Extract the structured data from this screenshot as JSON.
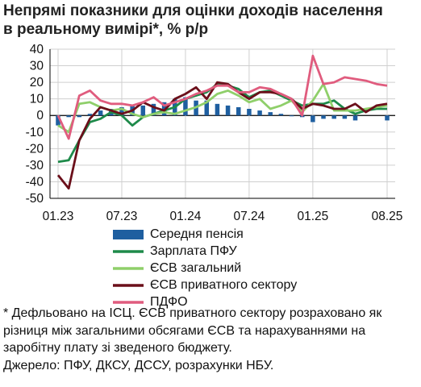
{
  "title": "Непрямі показники для оцінки доходів населення\nв реальному вимірі*, % р/р",
  "colors": {
    "pension": "#1f5fa0",
    "pfu": "#1e8a4a",
    "esv_total": "#8fcf6a",
    "esv_private": "#6b0f1a",
    "pdfo": "#e05c7e"
  },
  "chart_data": {
    "type": "line",
    "title": "Непрямі показники для оцінки доходів населення в реальному вимірі*, % р/р",
    "ylim": [
      -50,
      40
    ],
    "yticks": [
      "40",
      "30",
      "20",
      "10",
      "0",
      "-10",
      "-20",
      "-30",
      "-40",
      "-50"
    ],
    "xticks": [
      "01.23",
      "07.23",
      "01.24",
      "07.24",
      "01.25",
      "08.25"
    ],
    "x": [
      "01.23",
      "02.23",
      "03.23",
      "04.23",
      "05.23",
      "06.23",
      "07.23",
      "08.23",
      "09.23",
      "10.23",
      "11.23",
      "12.23",
      "01.24",
      "02.24",
      "03.24",
      "04.24",
      "05.24",
      "06.24",
      "07.24",
      "08.24",
      "09.24",
      "10.24",
      "11.24",
      "12.24",
      "01.25",
      "02.25",
      "03.25",
      "04.25",
      "05.25",
      "06.25",
      "07.25",
      "08.25"
    ],
    "grid": true,
    "legend": "bottom",
    "series": [
      {
        "name": "Середня пенсія",
        "style": "bar",
        "color": "#1f5fa0",
        "values": [
          -6,
          -1,
          -1,
          1,
          3,
          4,
          5,
          6,
          6,
          7,
          8,
          10,
          11,
          9,
          9,
          7,
          6,
          5,
          4,
          3,
          2,
          1,
          0,
          -1,
          -4,
          -2,
          -2,
          -2,
          -3,
          null,
          null,
          -3
        ]
      },
      {
        "name": "Зарплата ПФУ",
        "style": "line",
        "color": "#1e8a4a",
        "values": [
          -28,
          -27,
          -15,
          -4,
          -2,
          2,
          0,
          -6,
          -1,
          1,
          3,
          5,
          10,
          12,
          14,
          19,
          18,
          16,
          11,
          14,
          15,
          12,
          9,
          6,
          7,
          7,
          9,
          4,
          1,
          3,
          4,
          4
        ]
      },
      {
        "name": "ЄСВ загальний",
        "style": "line",
        "color": "#8fcf6a",
        "values": [
          -6,
          -10,
          7,
          8,
          5,
          3,
          4,
          1,
          -1,
          1,
          2,
          1,
          3,
          5,
          8,
          13,
          15,
          12,
          8,
          10,
          4,
          6,
          9,
          2,
          9,
          19,
          3,
          3,
          3,
          4,
          5,
          6
        ]
      },
      {
        "name": "ЄСВ приватного сектору",
        "style": "line",
        "color": "#6b0f1a",
        "values": [
          -36,
          -44,
          -15,
          -2,
          5,
          3,
          1,
          3,
          8,
          5,
          3,
          10,
          13,
          17,
          10,
          20,
          19,
          14,
          10,
          14,
          14,
          13,
          10,
          4,
          7,
          6,
          4,
          4,
          7,
          2,
          6,
          7
        ]
      },
      {
        "name": "ПДФО",
        "style": "line",
        "color": "#e05c7e",
        "values": [
          0,
          -14,
          12,
          15,
          9,
          7,
          7,
          6,
          8,
          11,
          6,
          8,
          10,
          13,
          15,
          18,
          18,
          14,
          14,
          17,
          16,
          13,
          10,
          0,
          36,
          19,
          20,
          23,
          22,
          21,
          19,
          18
        ]
      }
    ]
  },
  "footnote": "* Дефльовано на ІСЦ. ЄСВ приватного сектору розраховано як різниця між загальними обсягами ЄСВ та нарахуваннями на заробітну плату зі зведеного бюджету.\nДжерело: ПФУ, ДКСУ, ДССУ, розрахунки НБУ."
}
